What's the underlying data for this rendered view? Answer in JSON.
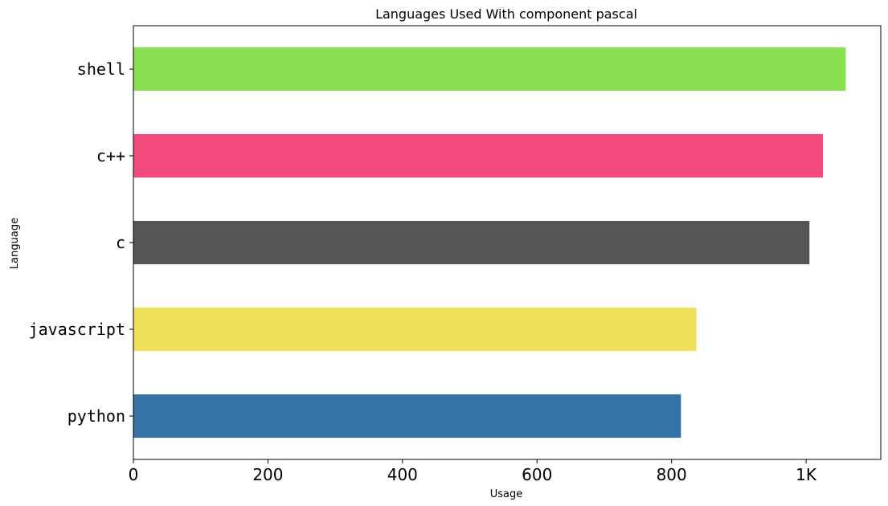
{
  "chart_data": {
    "type": "bar",
    "orientation": "horizontal",
    "title": "Languages Used With component pascal",
    "xlabel": "Usage",
    "ylabel": "Language",
    "xlim": [
      0,
      1111
    ],
    "xticks": [
      {
        "value": 0,
        "label": "0"
      },
      {
        "value": 200,
        "label": "200"
      },
      {
        "value": 400,
        "label": "400"
      },
      {
        "value": 600,
        "label": "600"
      },
      {
        "value": 800,
        "label": "800"
      },
      {
        "value": 1000,
        "label": "1K"
      }
    ],
    "categories": [
      "python",
      "javascript",
      "c",
      "c++",
      "shell"
    ],
    "values": [
      814,
      837,
      1005,
      1025,
      1059
    ],
    "colors": [
      "#3572a5",
      "#f0e05a",
      "#555555",
      "#f34b7d",
      "#89e051"
    ],
    "grid": false,
    "legend": "none"
  }
}
